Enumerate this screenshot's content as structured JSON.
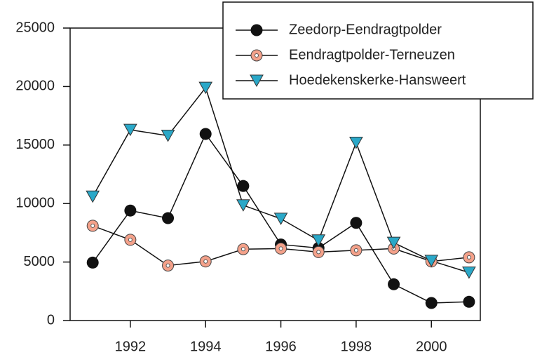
{
  "chart_data": {
    "type": "line",
    "x": [
      1991,
      1992,
      1993,
      1994,
      1995,
      1996,
      1997,
      1998,
      1999,
      2000,
      2001
    ],
    "series": [
      {
        "name": "Zeedorp-Eendragtpolder",
        "color": "#111111",
        "marker": "circle",
        "values": [
          4950,
          9400,
          8750,
          15950,
          11500,
          6500,
          6200,
          8350,
          3100,
          1500,
          1600
        ]
      },
      {
        "name": "Eendragtpolder-Terneuzen",
        "color": "#f4a18a",
        "marker": "dotted-circle",
        "values": [
          8100,
          6900,
          4700,
          5050,
          6100,
          6150,
          5850,
          6000,
          6150,
          5050,
          5400
        ]
      },
      {
        "name": "Hoedekenskerke-Hansweert",
        "color": "#2aa8c8",
        "marker": "triangle-down",
        "values": [
          10600,
          16300,
          15800,
          19900,
          9850,
          8700,
          6850,
          15200,
          6650,
          5100,
          4100
        ]
      }
    ],
    "xlim": [
      1990.4,
      2001.3
    ],
    "xticks": [
      1992,
      1994,
      1996,
      1998,
      2000
    ],
    "ylim": [
      0,
      25000
    ],
    "yticks": [
      0,
      5000,
      10000,
      15000,
      20000,
      25000
    ],
    "legend": "upper right"
  }
}
